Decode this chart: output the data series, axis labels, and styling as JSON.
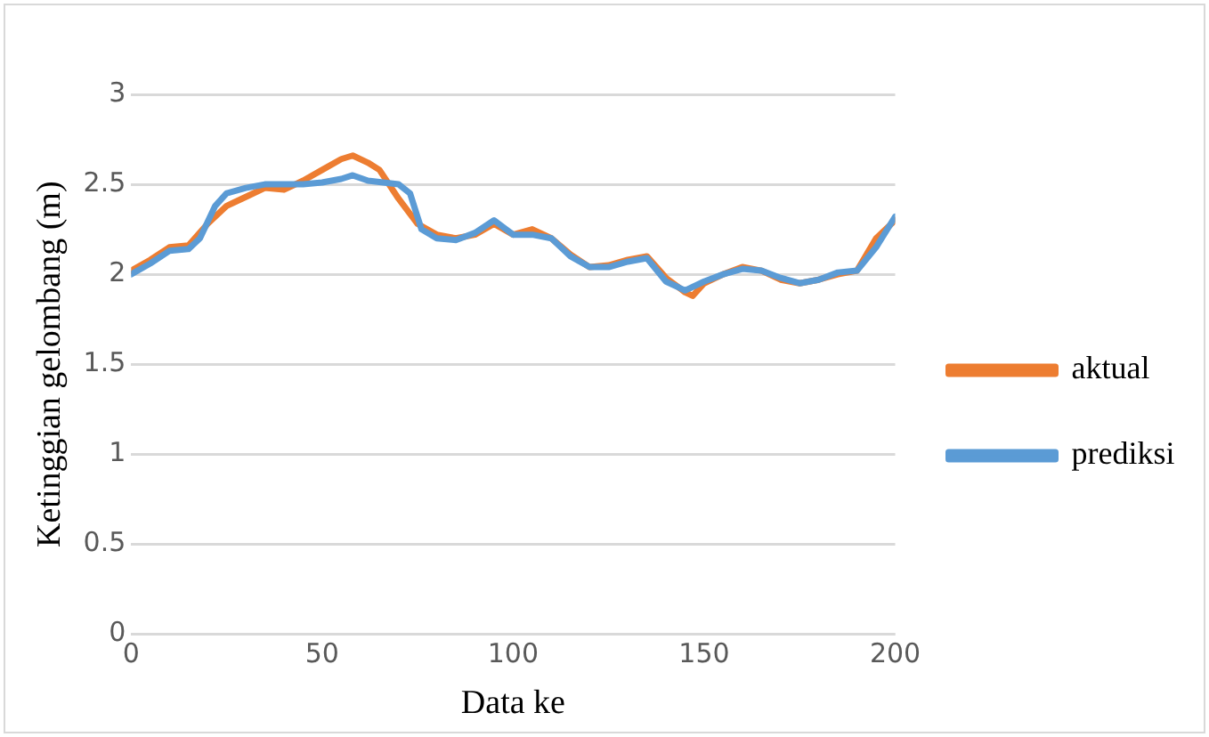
{
  "chart_data": {
    "type": "line",
    "xlabel": "Data ke",
    "ylabel": "Ketinggian gelombang (m)",
    "xlim": [
      0,
      200
    ],
    "xticks": [
      0,
      50,
      100,
      150,
      200
    ],
    "ylim": [
      0,
      3
    ],
    "yticks": [
      0,
      0.5,
      1,
      1.5,
      2,
      2.5,
      3
    ],
    "grid": "y",
    "legend": "right",
    "marker": "none",
    "line_style": "solid",
    "series": [
      {
        "name": "aktual",
        "color": "#ed7d31",
        "x": [
          0,
          5,
          10,
          15,
          20,
          25,
          30,
          35,
          40,
          45,
          50,
          55,
          58,
          62,
          65,
          70,
          75,
          80,
          85,
          90,
          95,
          100,
          105,
          110,
          115,
          120,
          125,
          130,
          135,
          140,
          145,
          147,
          150,
          155,
          160,
          165,
          170,
          175,
          180,
          185,
          190,
          195,
          200
        ],
        "values": [
          2.02,
          2.08,
          2.15,
          2.16,
          2.28,
          2.38,
          2.43,
          2.48,
          2.47,
          2.52,
          2.58,
          2.64,
          2.66,
          2.62,
          2.58,
          2.42,
          2.28,
          2.22,
          2.2,
          2.22,
          2.28,
          2.22,
          2.25,
          2.2,
          2.11,
          2.04,
          2.05,
          2.08,
          2.1,
          1.98,
          1.9,
          1.88,
          1.95,
          2.0,
          2.04,
          2.02,
          1.97,
          1.95,
          1.97,
          2.0,
          2.02,
          2.2,
          2.3
        ]
      },
      {
        "name": "prediksi",
        "color": "#5b9bd5",
        "x": [
          0,
          5,
          10,
          15,
          18,
          22,
          25,
          30,
          35,
          45,
          50,
          55,
          58,
          62,
          70,
          73,
          76,
          80,
          85,
          90,
          95,
          100,
          105,
          110,
          115,
          120,
          125,
          130,
          135,
          140,
          145,
          150,
          155,
          160,
          165,
          170,
          175,
          180,
          185,
          190,
          195,
          200
        ],
        "values": [
          2.0,
          2.06,
          2.13,
          2.14,
          2.2,
          2.38,
          2.45,
          2.48,
          2.5,
          2.5,
          2.51,
          2.53,
          2.55,
          2.52,
          2.5,
          2.45,
          2.25,
          2.2,
          2.19,
          2.23,
          2.3,
          2.22,
          2.22,
          2.2,
          2.1,
          2.04,
          2.04,
          2.07,
          2.09,
          1.96,
          1.91,
          1.96,
          2.0,
          2.03,
          2.02,
          1.98,
          1.95,
          1.97,
          2.01,
          2.02,
          2.15,
          2.32
        ]
      }
    ]
  }
}
